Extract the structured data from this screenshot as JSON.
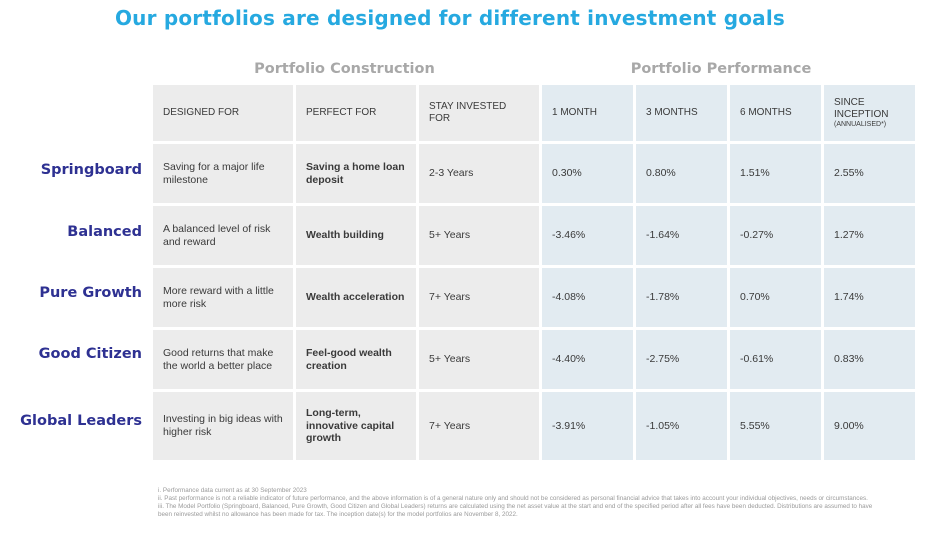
{
  "title": "Our portfolios are designed for different investment goals",
  "groups": {
    "construction": "Portfolio Construction",
    "performance": "Portfolio Performance"
  },
  "headers": {
    "designed_for": "DESIGNED FOR",
    "perfect_for": "PERFECT FOR",
    "stay_invested": "STAY INVESTED FOR",
    "one_month": "1 MONTH",
    "three_months": "3 MONTHS",
    "six_months": "6 MONTHS",
    "since_inception": "SINCE INCEPTION",
    "since_inception_sub": "(ANNUALISED*)"
  },
  "rows": [
    {
      "name": "Springboard",
      "designed_for": "Saving for a major life milestone",
      "perfect_for": "Saving a home loan deposit",
      "stay": "2-3 Years",
      "m1": "0.30%",
      "m3": "0.80%",
      "m6": "1.51%",
      "inception": "2.55%"
    },
    {
      "name": "Balanced",
      "designed_for": "A balanced level of risk and reward",
      "perfect_for": "Wealth building",
      "stay": "5+ Years",
      "m1": "-3.46%",
      "m3": "-1.64%",
      "m6": "-0.27%",
      "inception": "1.27%"
    },
    {
      "name": "Pure Growth",
      "designed_for": "More reward with a little more risk",
      "perfect_for": "Wealth acceleration",
      "stay": "7+ Years",
      "m1": "-4.08%",
      "m3": "-1.78%",
      "m6": "0.70%",
      "inception": "1.74%"
    },
    {
      "name": "Good Citizen",
      "designed_for": "Good returns that make the world a better place",
      "perfect_for": "Feel-good wealth creation",
      "stay": "5+ Years",
      "m1": "-4.40%",
      "m3": "-2.75%",
      "m6": "-0.61%",
      "inception": "0.83%"
    },
    {
      "name": "Global Leaders",
      "designed_for": "Investing in big ideas with higher risk",
      "perfect_for": "Long-term, innovative capital growth",
      "stay": "7+ Years",
      "m1": "-3.91%",
      "m3": "-1.05%",
      "m6": "5.55%",
      "inception": "9.00%"
    }
  ],
  "footnotes": [
    "i. Performance data current as at 30 September 2023",
    "ii. Past performance is not a reliable indicator of future performance, and the above information is of a general nature only and should not be considered as personal financial advice that takes into account your individual objectives, needs or circumstances.",
    "iii. The Model Portfolio (Springboard, Balanced, Pure Growth, Good Citizen and Global Leaders) returns are calculated using the net asset value at the start and end of the specified period after all fees have been deducted. Distributions are assumed to have been reinvested whilst no allowance has been made for tax. The inception date(s) for the model portfolios are November 8, 2022."
  ],
  "colors": {
    "title": "#26a9e0",
    "row_labels": "#2e3192",
    "group_heads": "#a8a8a8",
    "construction_bg": "#ececec",
    "performance_bg": "#e2ebf1"
  }
}
